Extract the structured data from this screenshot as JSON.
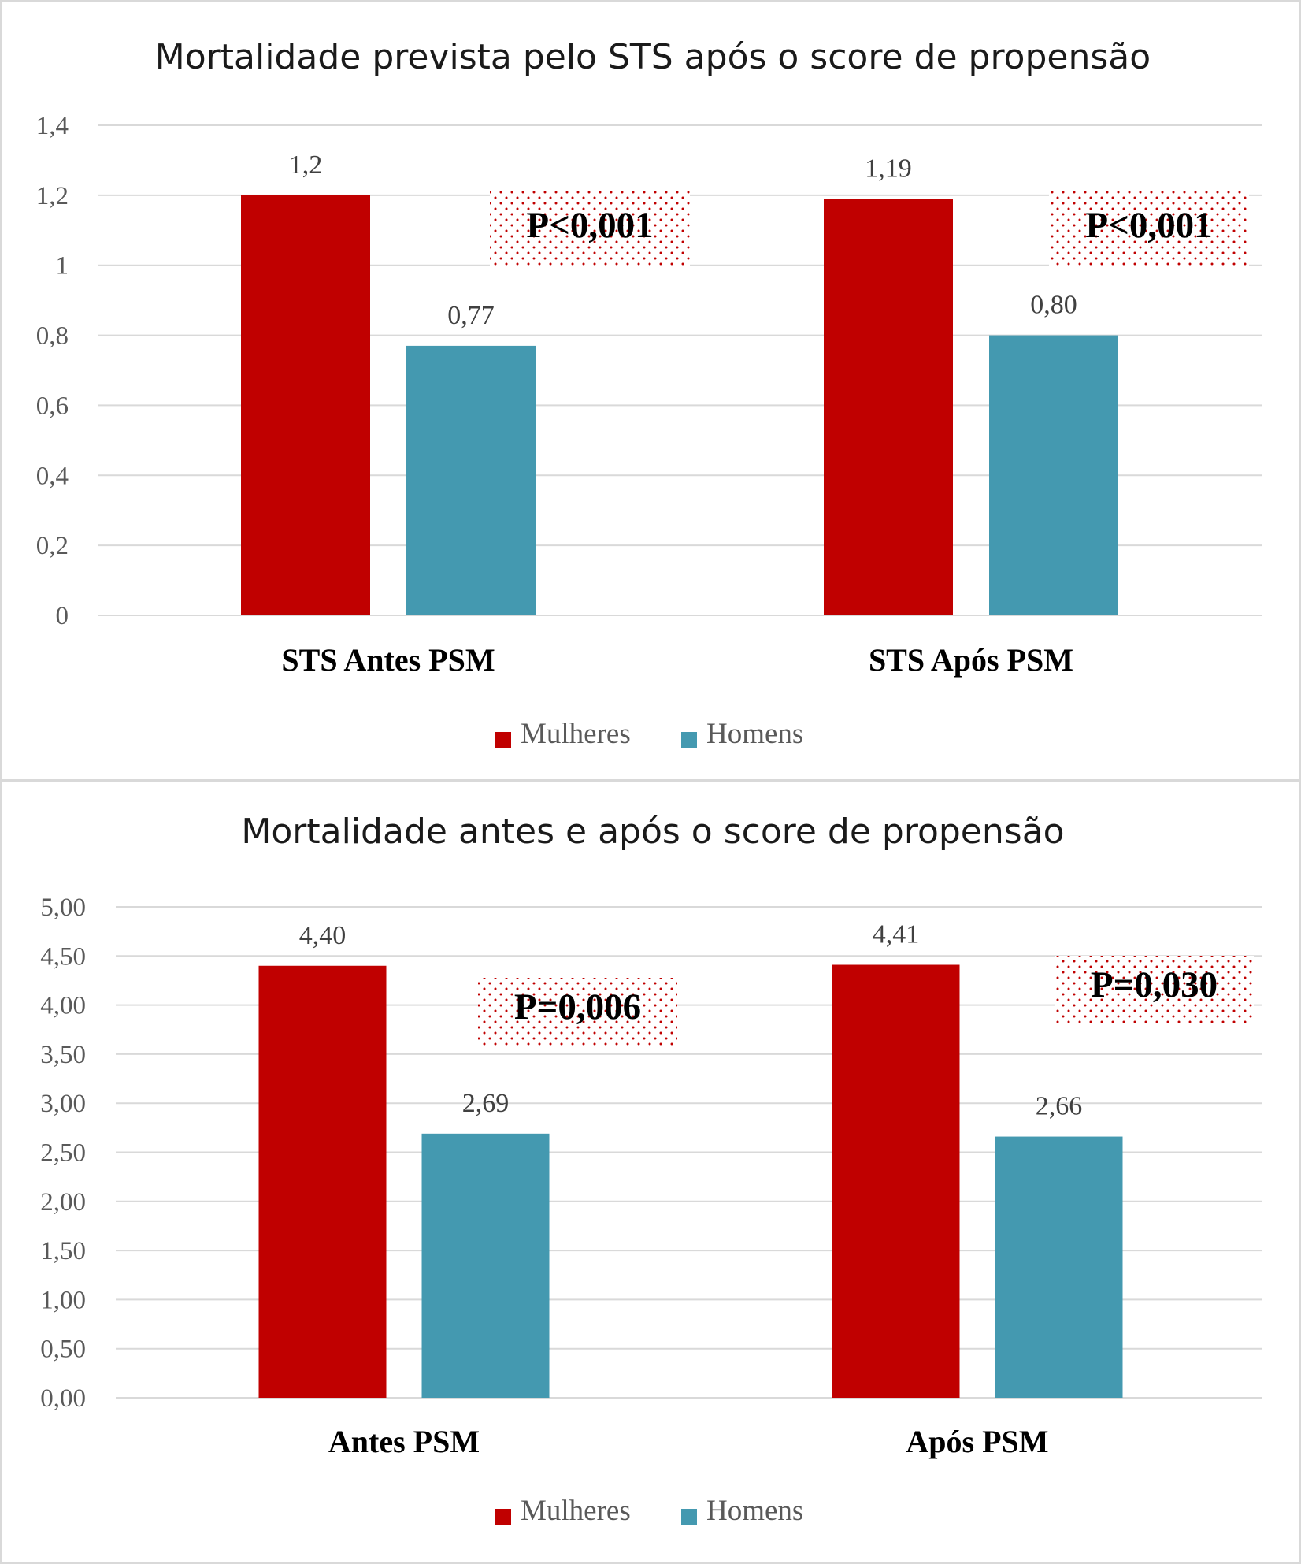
{
  "chart_data": [
    {
      "type": "bar",
      "title": "Mortalidade prevista pelo STS após o score de propensão",
      "categories": [
        "STS Antes PSM",
        "STS Após PSM"
      ],
      "series": [
        {
          "name": "Mulheres",
          "color": "#c00000",
          "values": [
            1.2,
            1.19
          ],
          "labels": [
            "1,2",
            "1,19"
          ]
        },
        {
          "name": "Homens",
          "color": "#4499b0",
          "values": [
            0.77,
            0.8
          ],
          "labels": [
            "0,77",
            "0,80"
          ]
        }
      ],
      "ylim": [
        0,
        1.4
      ],
      "yticks": [
        "0",
        "0,2",
        "0,4",
        "0,6",
        "0,8",
        "1",
        "1,2",
        "1,4"
      ],
      "annotations": [
        "P<0,001",
        "P<0,001"
      ],
      "grid": true,
      "legend": "bottom"
    },
    {
      "type": "bar",
      "title": "Mortalidade antes e após o score de propensão",
      "categories": [
        "Antes PSM",
        "Após PSM"
      ],
      "series": [
        {
          "name": "Mulheres",
          "color": "#c00000",
          "values": [
            4.4,
            4.41
          ],
          "labels": [
            "4,40",
            "4,41"
          ]
        },
        {
          "name": "Homens",
          "color": "#4499b0",
          "values": [
            2.69,
            2.66
          ],
          "labels": [
            "2,69",
            "2,66"
          ]
        }
      ],
      "ylim": [
        0,
        5
      ],
      "yticks": [
        "0,00",
        "0,50",
        "1,00",
        "1,50",
        "2,00",
        "2,50",
        "3,00",
        "3,50",
        "4,00",
        "4,50",
        "5,00"
      ],
      "annotations": [
        "P=0,006",
        "P=0,030"
      ],
      "grid": true,
      "legend": "bottom"
    }
  ]
}
